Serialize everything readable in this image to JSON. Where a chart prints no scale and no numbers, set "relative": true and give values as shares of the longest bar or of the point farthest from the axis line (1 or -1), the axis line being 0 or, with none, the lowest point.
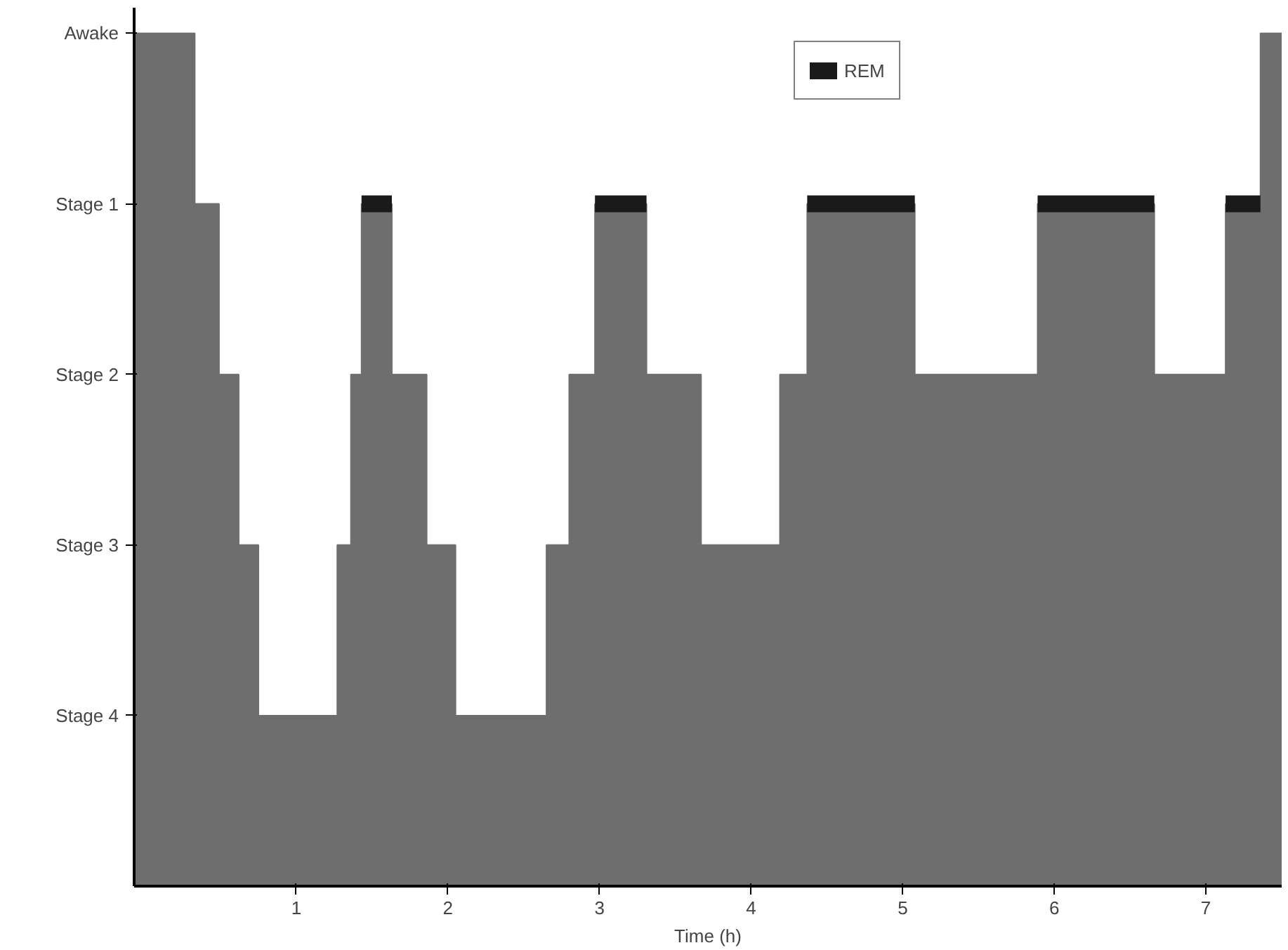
{
  "chart_data": {
    "type": "area",
    "relative": true,
    "xlabel": "Time (h)",
    "xlim": [
      -0.07,
      7.5
    ],
    "xticks": [
      1,
      2,
      3,
      4,
      5,
      6,
      7
    ],
    "y_categories": [
      "Awake",
      "Stage 1",
      "Stage 2",
      "Stage 3",
      "Stage 4"
    ],
    "grid": false,
    "legend": "top right",
    "series": [
      {
        "color": "#6e6e6e",
        "x": [
          -0.07,
          0.33,
          0.49,
          0.62,
          0.75,
          1.27,
          1.36,
          1.43,
          1.63,
          1.86,
          2.05,
          2.65,
          2.8,
          2.97,
          3.31,
          3.67,
          4.19,
          4.37,
          5.08,
          5.89,
          6.66,
          7.13,
          7.36,
          7.5
        ],
        "values": [
          1,
          0.8,
          0.6,
          0.4,
          0.2,
          0.4,
          0.6,
          0.8,
          0.6,
          0.4,
          0.2,
          0.4,
          0.6,
          0.8,
          0.6,
          0.4,
          0.6,
          0.8,
          0.6,
          0.8,
          0.6,
          0.8,
          1,
          1
        ]
      },
      {
        "type": "line",
        "name": "REM",
        "color": "#1a1a1a",
        "x": [
          1.43,
          1.63,
          null,
          2.97,
          3.31,
          null,
          4.37,
          5.08,
          null,
          5.89,
          6.66,
          null,
          7.13,
          7.36
        ],
        "values": [
          0.8,
          0.8,
          null,
          0.8,
          0.8,
          null,
          0.8,
          0.8,
          null,
          0.8,
          0.8,
          null,
          0.8,
          0.8
        ]
      }
    ]
  }
}
